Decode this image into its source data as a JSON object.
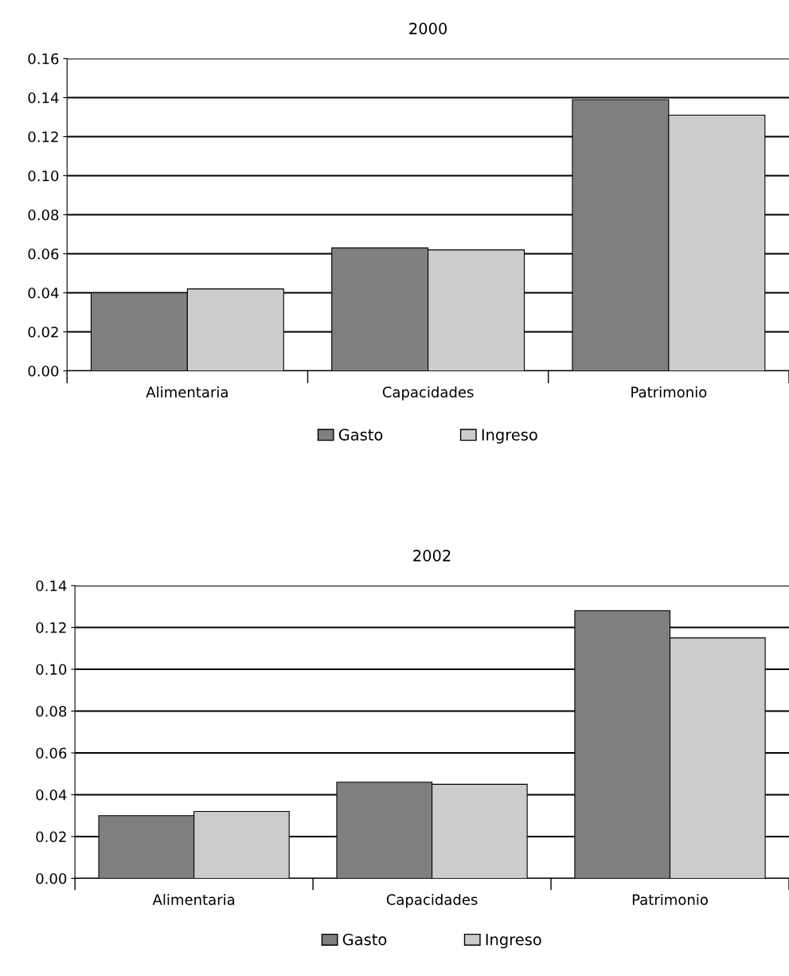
{
  "chart_data": [
    {
      "type": "bar",
      "title": "2000",
      "categories": [
        "Alimentaria",
        "Capacidades",
        "Patrimonio"
      ],
      "series": [
        {
          "name": "Gasto",
          "color": "#7f7f7f",
          "values": [
            0.04,
            0.063,
            0.139
          ]
        },
        {
          "name": "Ingreso",
          "color": "#cccccc",
          "values": [
            0.042,
            0.062,
            0.131
          ]
        }
      ],
      "ylim": [
        0,
        0.16
      ],
      "yticks": [
        {
          "value": 0,
          "label": "0.00"
        },
        {
          "value": 0.02,
          "label": "0.02"
        },
        {
          "value": 0.04,
          "label": "0.04"
        },
        {
          "value": 0.06,
          "label": "0.06"
        },
        {
          "value": 0.08,
          "label": "0.08"
        },
        {
          "value": 0.1,
          "label": "0.10"
        },
        {
          "value": 0.12,
          "label": "0.12"
        },
        {
          "value": 0.14,
          "label": "0.14"
        },
        {
          "value": 0.16,
          "label": "0.16"
        }
      ],
      "grid": "y",
      "legend": "bottom"
    },
    {
      "type": "bar",
      "title": "2002",
      "categories": [
        "Alimentaria",
        "Capacidades",
        "Patrimonio"
      ],
      "series": [
        {
          "name": "Gasto",
          "color": "#7f7f7f",
          "values": [
            0.03,
            0.046,
            0.128
          ]
        },
        {
          "name": "Ingreso",
          "color": "#cccccc",
          "values": [
            0.032,
            0.045,
            0.115
          ]
        }
      ],
      "ylim": [
        0,
        0.14
      ],
      "yticks": [
        {
          "value": 0,
          "label": "0.00"
        },
        {
          "value": 0.02,
          "label": "0.02"
        },
        {
          "value": 0.04,
          "label": "0.04"
        },
        {
          "value": 0.06,
          "label": "0.06"
        },
        {
          "value": 0.08,
          "label": "0.08"
        },
        {
          "value": 0.1,
          "label": "0.10"
        },
        {
          "value": 0.12,
          "label": "0.12"
        },
        {
          "value": 0.14,
          "label": "0.14"
        }
      ],
      "grid": "y",
      "legend": "bottom"
    }
  ]
}
